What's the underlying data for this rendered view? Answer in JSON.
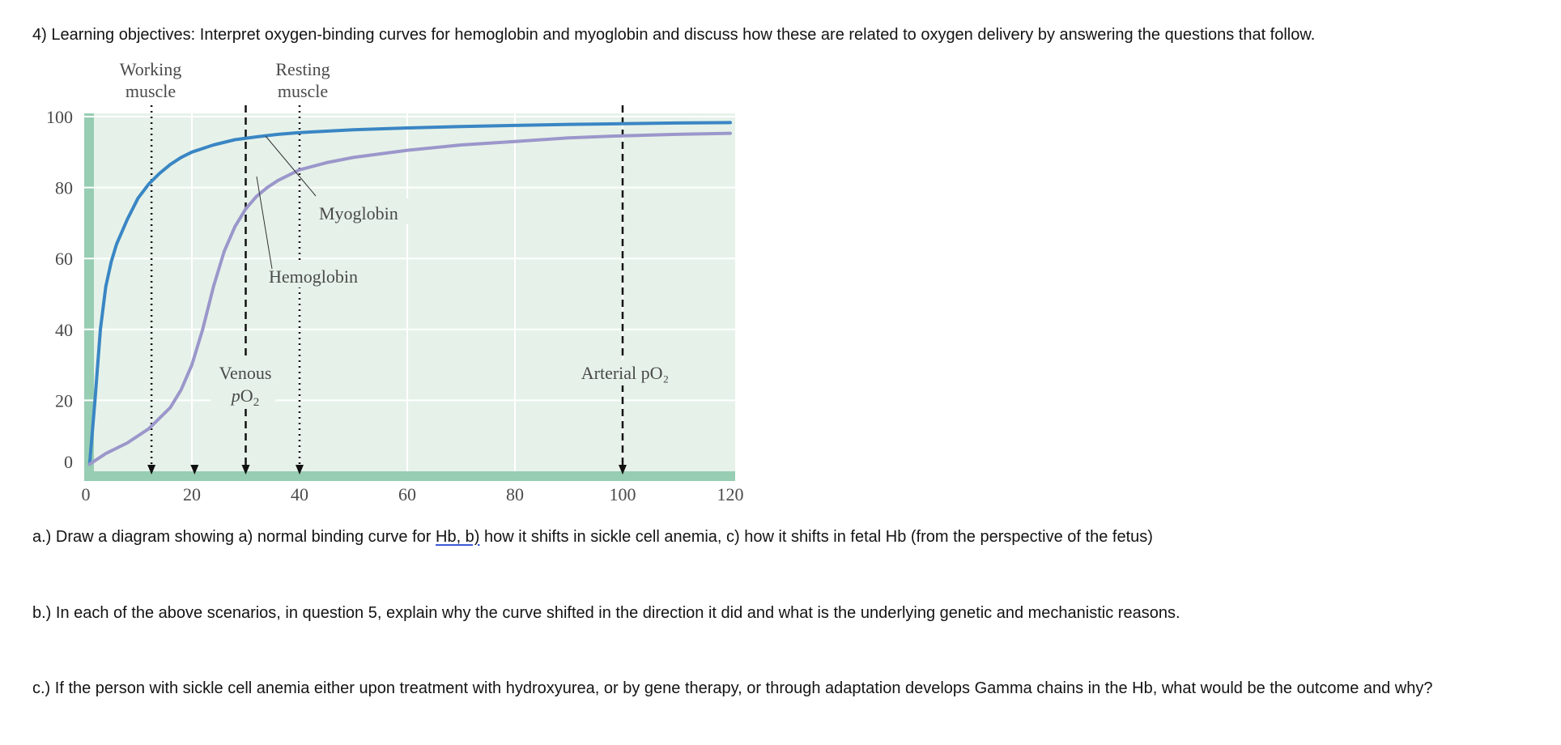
{
  "header": {
    "title": "4) Learning objectives: Interpret oxygen-binding curves for hemoglobin and myoglobin and discuss how these are related to oxygen delivery by answering the questions that follow."
  },
  "questions": {
    "a_pre": "a.) Draw a diagram showing a) normal binding curve for ",
    "a_link": "Hb,  b)",
    "a_post": " how it shifts in sickle cell anemia,  c) how it shifts in fetal Hb (from the perspective of the fetus)",
    "b": "b.) In each of the above scenarios, in question 5, explain why the curve shifted in the direction it did and what is the underlying genetic and mechanistic reasons.",
    "c": "c.) If the person with sickle cell anemia either upon treatment with hydroxyurea, or by gene therapy, or through adaptation develops Gamma chains in the Hb, what would be the outcome and why?"
  },
  "figure_labels": {
    "working_1": "Working",
    "working_2": "muscle",
    "resting_1": "Resting",
    "resting_2": "muscle",
    "myoglobin": "Myoglobin",
    "hemoglobin": "Hemoglobin",
    "venous_1": "Venous",
    "arterial": "Arterial pO₂"
  },
  "chart_data": {
    "type": "line",
    "x_ticks": [
      "0",
      "20",
      "40",
      "60",
      "80",
      "100",
      "120"
    ],
    "y_ticks": [
      "0",
      "20",
      "40",
      "60",
      "80",
      "100"
    ],
    "xlim": [
      0,
      120
    ],
    "ylim": [
      0,
      100
    ],
    "grid": true,
    "series": [
      {
        "name": "Myoglobin",
        "color": "#3a86c4",
        "x": [
          1,
          2,
          3,
          4,
          5,
          6,
          8,
          10,
          12,
          14,
          16,
          18,
          20,
          24,
          28,
          32,
          36,
          40,
          50,
          60,
          70,
          80,
          90,
          100,
          110,
          120
        ],
        "y": [
          2,
          20,
          40,
          52,
          59,
          64,
          71,
          77,
          81,
          84,
          86.5,
          88.5,
          90,
          92,
          93.5,
          94.3,
          95,
          95.5,
          96.3,
          96.8,
          97.2,
          97.5,
          97.8,
          98,
          98.2,
          98.3
        ]
      },
      {
        "name": "Hemoglobin",
        "color": "#9b97cb",
        "x": [
          1,
          4,
          8,
          12,
          16,
          18,
          20,
          22,
          24,
          26,
          28,
          30,
          32,
          34,
          36,
          40,
          45,
          50,
          60,
          70,
          80,
          90,
          100,
          110,
          120
        ],
        "y": [
          2,
          5,
          8,
          12,
          18,
          23,
          30,
          40,
          52,
          62,
          69,
          74,
          77.5,
          80,
          82,
          85,
          87,
          88.5,
          90.5,
          92,
          93,
          94,
          94.6,
          95,
          95.3
        ]
      }
    ],
    "markers": [
      {
        "label": "Working muscle",
        "x": 12.5,
        "style": "dotted"
      },
      {
        "label": "",
        "x": 20.5,
        "style": "arrow"
      },
      {
        "label": "Venous pO2",
        "x": 30,
        "style": "dashed"
      },
      {
        "label": "Resting muscle",
        "x": 40,
        "style": "dotted"
      },
      {
        "label": "Arterial pO2",
        "x": 100,
        "style": "dashed"
      }
    ]
  }
}
